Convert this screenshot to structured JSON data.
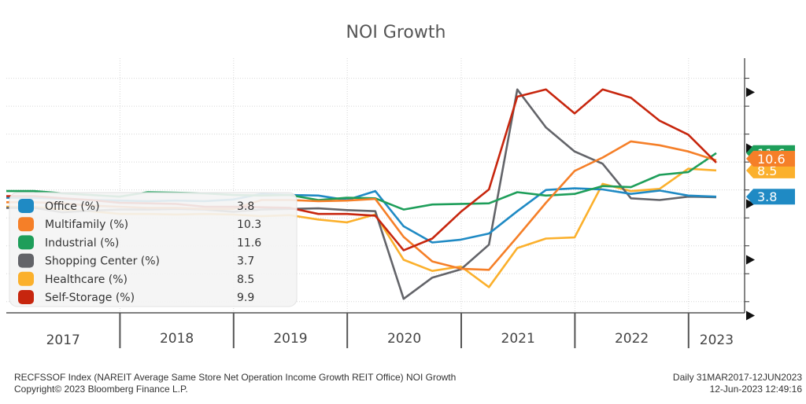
{
  "chart_data": {
    "type": "line",
    "title": "NOI Growth",
    "x_ticks": [
      "2017",
      "2018",
      "2019",
      "2020",
      "2021",
      "2022",
      "2023"
    ],
    "x": [
      "2017-03-31",
      "2017-06-30",
      "2017-09-30",
      "2017-12-31",
      "2018-03-31",
      "2018-06-30",
      "2018-09-30",
      "2018-12-31",
      "2019-03-31",
      "2019-06-30",
      "2019-09-30",
      "2019-12-31",
      "2020-03-31",
      "2020-06-30",
      "2020-09-30",
      "2020-12-31",
      "2021-03-31",
      "2021-06-30",
      "2021-09-30",
      "2021-12-31",
      "2022-03-31",
      "2022-06-30",
      "2022-09-30",
      "2022-12-31",
      "2023-03-31"
    ],
    "series": [
      {
        "name": "Office (%)",
        "last": "3.8",
        "color": "#1f8ac4",
        "values": [
          3.6,
          3.4,
          3.2,
          3.1,
          3.0,
          3.1,
          3.0,
          3.3,
          4.3,
          4.1,
          4.0,
          3.2,
          4.8,
          -1.5,
          -4.4,
          -3.9,
          -2.8,
          1.2,
          5.0,
          5.3,
          5.1,
          4.3,
          4.9,
          4.0,
          3.8
        ]
      },
      {
        "name": "Multifamily (%)",
        "last": "10.3",
        "color": "#f57f28",
        "values": [
          2.8,
          2.6,
          2.2,
          2.0,
          1.8,
          1.8,
          1.6,
          1.6,
          3.2,
          3.2,
          3.0,
          3.1,
          3.4,
          -3.4,
          -7.8,
          -9.1,
          -9.3,
          -3.4,
          2.7,
          8.4,
          10.8,
          13.7,
          13.0,
          11.9,
          10.3
        ]
      },
      {
        "name": "Industrial (%)",
        "last": "11.6",
        "color": "#1e9e5a",
        "values": [
          4.8,
          4.4,
          4.1,
          3.8,
          4.6,
          4.5,
          4.4,
          4.1,
          4.0,
          4.1,
          3.2,
          3.6,
          3.5,
          1.5,
          2.4,
          2.5,
          2.6,
          4.6,
          4.0,
          4.3,
          5.7,
          5.5,
          7.7,
          8.2,
          11.6
        ]
      },
      {
        "name": "Shopping Center (%)",
        "last": "3.7",
        "color": "#636469",
        "values": [
          1.8,
          1.0,
          1.3,
          1.5,
          1.5,
          1.6,
          1.5,
          1.1,
          1.5,
          1.6,
          1.7,
          1.4,
          1.2,
          -14.5,
          -10.7,
          -9.2,
          -4.8,
          23.0,
          16.2,
          11.9,
          9.7,
          3.5,
          3.2,
          3.8,
          3.7
        ]
      },
      {
        "name": "Healthcare (%)",
        "last": "8.5",
        "color": "#fbb02c",
        "values": [
          2.0,
          1.5,
          1.2,
          0.7,
          0.7,
          0.6,
          0.7,
          0.6,
          0.3,
          0.5,
          -0.3,
          -0.8,
          0.6,
          -7.5,
          -9.5,
          -8.7,
          -12.4,
          -5.4,
          -3.7,
          -3.5,
          6.1,
          4.8,
          5.2,
          8.8,
          8.5
        ]
      },
      {
        "name": "Self-Storage (%)",
        "last": "9.9",
        "color": "#c7260e",
        "values": [
          3.9,
          3.5,
          3.2,
          2.7,
          2.6,
          2.5,
          2.0,
          2.0,
          1.9,
          1.8,
          0.7,
          0.7,
          0.4,
          -5.8,
          -3.7,
          1.1,
          5.1,
          21.7,
          23.0,
          18.7,
          23.0,
          21.5,
          17.4,
          14.9,
          9.9
        ]
      }
    ],
    "grid": true,
    "legend_position": "bottom-left",
    "y_axis_side": "right"
  },
  "footer": {
    "left_line1": "RECFSSOF Index (NAREIT Average Same Store Net Operation Income Growth REIT Office) NOI Growth",
    "left_line2": "Copyright© 2023 Bloomberg Finance L.P.",
    "right_line1": "Daily 31MAR2017-12JUN2023",
    "right_line2": "12-Jun-2023 12:49:16"
  }
}
